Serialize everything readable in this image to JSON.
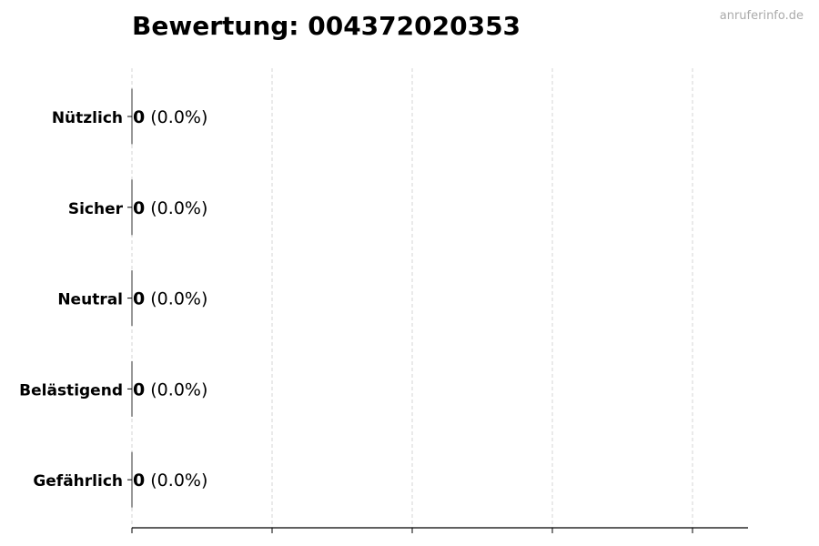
{
  "chart_data": {
    "type": "bar",
    "orientation": "horizontal",
    "title": "Bewertung: 004372020353",
    "watermark": "anruferinfo.de",
    "categories": [
      "Nützlich",
      "Sicher",
      "Neutral",
      "Belästigend",
      "Gefährlich"
    ],
    "values": [
      0,
      0,
      0,
      0,
      0
    ],
    "percent_labels": [
      "(0.0%)",
      "(0.0%)",
      "(0.0%)",
      "(0.0%)",
      "(0.0%)"
    ],
    "xlabel": "",
    "ylabel": "",
    "x_ticks_labeled": false,
    "grid": "vertical dashed",
    "bar_edge_color": "#333333",
    "grid_color": "#cccccc"
  }
}
